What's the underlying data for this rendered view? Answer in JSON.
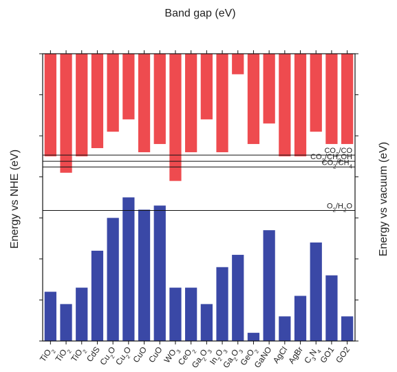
{
  "chart_data": {
    "type": "bar",
    "title": "Band gap (eV)",
    "ylabel": "Energy vs NHE (eV)",
    "y2label": "Energy vs vacuum (eV)",
    "ylim": [
      -3,
      4
    ],
    "y_inverted": true,
    "yticks": [
      "-3",
      "-2",
      "-1",
      "0",
      "1",
      "2",
      "3",
      "4"
    ],
    "y2ticks": [
      "-1.5",
      "-2.5",
      "-3.5",
      "-4.5",
      "-5.5",
      "-6.5",
      "-7.5",
      "-8.5"
    ],
    "categories": [
      {
        "main": "TiO",
        "sub": "2"
      },
      {
        "main": "TiO",
        "sub": "2"
      },
      {
        "main": "TiO",
        "sub": "2"
      },
      {
        "main": "CdS",
        "sub": ""
      },
      {
        "main": "Cu",
        "sub": "2",
        "tail": "O"
      },
      {
        "main": "Cu",
        "sub": "2",
        "tail": "O"
      },
      {
        "main": "CuO",
        "sub": ""
      },
      {
        "main": "CuO",
        "sub": ""
      },
      {
        "main": "WO",
        "sub": "3"
      },
      {
        "main": "CeO",
        "sub": "2"
      },
      {
        "main": "Ga",
        "sub": "2",
        "tail": "O",
        "sub2": "3"
      },
      {
        "main": "In",
        "sub": "2",
        "tail": "O",
        "sub2": "3"
      },
      {
        "main": "Ga",
        "sub": "2",
        "tail": "O",
        "sub2": "3"
      },
      {
        "main": "GeO",
        "sub": "2"
      },
      {
        "main": "GaNO",
        "sub": ""
      },
      {
        "main": "AgCl",
        "sub": ""
      },
      {
        "main": "AgBr",
        "sub": ""
      },
      {
        "main": "C",
        "sub": "3",
        "tail": "N",
        "sub2": "4"
      },
      {
        "main": "GO1",
        "sub": ""
      },
      {
        "main": "GO2",
        "sub": ""
      }
    ],
    "band_gaps": [
      "3.2",
      "3.2",
      "3.2",
      "2.4",
      "2.1",
      "1.91",
      "1.35",
      "1.56",
      "2.63",
      "3.2",
      "4.59",
      "2.8",
      "4.45",
      "4.5",
      "2.51",
      "3.95",
      "3.45",
      "2.7",
      "3.19",
      "4.19"
    ],
    "series": [
      {
        "name": "conduction band",
        "color": "#ee4b4f",
        "values": [
          -0.5,
          -0.1,
          -0.5,
          -0.7,
          -1.1,
          -1.4,
          -0.6,
          -0.8,
          0.1,
          -0.6,
          -1.4,
          -0.6,
          -2.5,
          -0.8,
          -1.3,
          -0.5,
          -0.5,
          -1.1,
          -0.8,
          -0.8
        ]
      },
      {
        "name": "valence band",
        "color": "#3a48a6",
        "values": [
          2.8,
          3.1,
          2.7,
          1.8,
          1.0,
          0.5,
          0.8,
          0.7,
          2.7,
          2.7,
          3.1,
          2.2,
          1.9,
          3.8,
          1.3,
          3.4,
          2.9,
          1.6,
          2.4,
          3.4
        ]
      }
    ],
    "reference_lines": [
      {
        "label_parts": [
          {
            "t": "CO"
          },
          {
            "t": "2",
            "sub": true
          },
          {
            "t": "/CO"
          }
        ],
        "y": -0.53
      },
      {
        "label_parts": [
          {
            "t": "CO"
          },
          {
            "t": "2",
            "sub": true
          },
          {
            "t": "/CH"
          },
          {
            "t": "3",
            "sub": true
          },
          {
            "t": "OH"
          }
        ],
        "y": -0.38
      },
      {
        "label_parts": [
          {
            "t": "CO"
          },
          {
            "t": "2",
            "sub": true
          },
          {
            "t": "/CH"
          },
          {
            "t": "4",
            "sub": true
          }
        ],
        "y": -0.24
      },
      {
        "label_parts": [
          {
            "t": "O"
          },
          {
            "t": "2",
            "sub": true
          },
          {
            "t": "/H"
          },
          {
            "t": "2",
            "sub": true
          },
          {
            "t": "O"
          }
        ],
        "y": 0.82
      }
    ],
    "grid": false,
    "legend": "none"
  }
}
